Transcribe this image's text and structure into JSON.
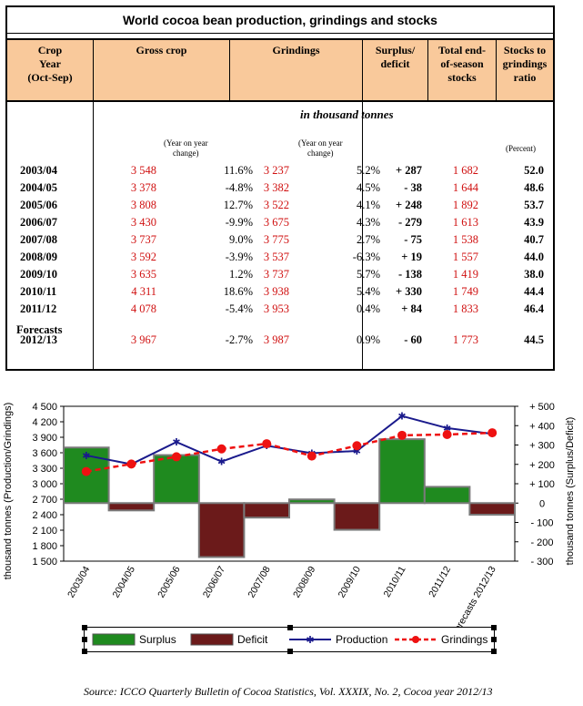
{
  "table": {
    "title": "World cocoa bean production, grindings and stocks",
    "headers": {
      "crop_year": [
        "Crop",
        "Year",
        "(Oct-Sep)"
      ],
      "gross_crop": "Gross crop",
      "grindings": "Grindings",
      "surplus": [
        "Surplus/",
        "deficit"
      ],
      "stocks": [
        "Total end-",
        "of-season",
        "stocks"
      ],
      "ratio": [
        "Stocks to",
        "grindings",
        "ratio"
      ]
    },
    "unit": "in thousand tonnes",
    "sub_yoy": [
      "(Year on year",
      "change)"
    ],
    "sub_pct": "(Percent)",
    "forecasts_label": "Forecasts",
    "rows": [
      {
        "year": "2003/04",
        "gross": "3 548",
        "gross_pct": "11.6%",
        "grind": "3 237",
        "grind_pct": "5.2%",
        "sd": "+ 287",
        "stocks": "1 682",
        "ratio": "52.0"
      },
      {
        "year": "2004/05",
        "gross": "3 378",
        "gross_pct": "-4.8%",
        "grind": "3 382",
        "grind_pct": "4.5%",
        "sd": "- 38",
        "stocks": "1 644",
        "ratio": "48.6"
      },
      {
        "year": "2005/06",
        "gross": "3 808",
        "gross_pct": "12.7%",
        "grind": "3 522",
        "grind_pct": "4.1%",
        "sd": "+ 248",
        "stocks": "1 892",
        "ratio": "53.7"
      },
      {
        "year": "2006/07",
        "gross": "3 430",
        "gross_pct": "-9.9%",
        "grind": "3 675",
        "grind_pct": "4.3%",
        "sd": "- 279",
        "stocks": "1 613",
        "ratio": "43.9"
      },
      {
        "year": "2007/08",
        "gross": "3 737",
        "gross_pct": "9.0%",
        "grind": "3 775",
        "grind_pct": "2.7%",
        "sd": "- 75",
        "stocks": "1 538",
        "ratio": "40.7"
      },
      {
        "year": "2008/09",
        "gross": "3 592",
        "gross_pct": "-3.9%",
        "grind": "3 537",
        "grind_pct": "-6.3%",
        "sd": "+ 19",
        "stocks": "1 557",
        "ratio": "44.0"
      },
      {
        "year": "2009/10",
        "gross": "3 635",
        "gross_pct": "1.2%",
        "grind": "3 737",
        "grind_pct": "5.7%",
        "sd": "- 138",
        "stocks": "1 419",
        "ratio": "38.0"
      },
      {
        "year": "2010/11",
        "gross": "4 311",
        "gross_pct": "18.6%",
        "grind": "3 938",
        "grind_pct": "5.4%",
        "sd": "+ 330",
        "stocks": "1 749",
        "ratio": "44.4"
      },
      {
        "year": "2011/12",
        "gross": "4 078",
        "gross_pct": "-5.4%",
        "grind": "3 953",
        "grind_pct": "0.4%",
        "sd": "+ 84",
        "stocks": "1 833",
        "ratio": "46.4"
      },
      {
        "year": "2012/13",
        "gross": "3 967",
        "gross_pct": "-2.7%",
        "grind": "3 987",
        "grind_pct": "0.9%",
        "sd": "- 60",
        "stocks": "1 773",
        "ratio": "44.5"
      }
    ]
  },
  "chart_data": {
    "type": "bar",
    "categories": [
      "2003/04",
      "2004/05",
      "2005/06",
      "2006/07",
      "2007/08",
      "2008/09",
      "2009/10",
      "2010/11",
      "2011/12",
      "Forecasts 2012/13"
    ],
    "series": [
      {
        "name": "Surplus",
        "type": "bar",
        "axis": "right",
        "values": [
          287,
          null,
          248,
          null,
          null,
          19,
          null,
          330,
          84,
          null
        ]
      },
      {
        "name": "Deficit",
        "type": "bar",
        "axis": "right",
        "values": [
          null,
          -38,
          null,
          -279,
          -75,
          null,
          -138,
          null,
          null,
          -60
        ]
      },
      {
        "name": "Production",
        "type": "line",
        "axis": "left",
        "values": [
          3548,
          3378,
          3808,
          3430,
          3737,
          3592,
          3635,
          4311,
          4078,
          3967
        ]
      },
      {
        "name": "Grindings",
        "type": "line",
        "axis": "left",
        "values": [
          3237,
          3382,
          3522,
          3675,
          3775,
          3537,
          3737,
          3938,
          3953,
          3987
        ]
      }
    ],
    "ylabel": "thousand tonnes (Production/Grindings)",
    "y2label": "thousand tonnes (Surplus/Deficit)",
    "ylim": [
      1500,
      4500
    ],
    "y2lim": [
      -300,
      500
    ],
    "yticks": [
      "1 500",
      "1 800",
      "2 100",
      "2 400",
      "2 700",
      "3 000",
      "3 300",
      "3 600",
      "3 900",
      "4 200",
      "4 500"
    ],
    "y2ticks": [
      "- 300",
      "- 200",
      "- 100",
      "0",
      "+ 100",
      "+ 200",
      "+ 300",
      "+ 400",
      "+ 500"
    ],
    "y2tick_values": [
      -300,
      -200,
      -100,
      0,
      100,
      200,
      300,
      400,
      500
    ],
    "legend": [
      "Surplus",
      "Deficit",
      "Production",
      "Grindings"
    ],
    "legend_position": "bottom"
  },
  "colors": {
    "surplus": "#1f8a1f",
    "deficit": "#6b1a1a",
    "production": "#1a1a8c",
    "grindings": "#ee1111",
    "plot_bg": "#ffffff",
    "header_bg": "#f9c99b"
  },
  "source": "Source: ICCO Quarterly Bulletin of Cocoa Statistics, Vol. XXXIX, No. 2, Cocoa year 2012/13"
}
